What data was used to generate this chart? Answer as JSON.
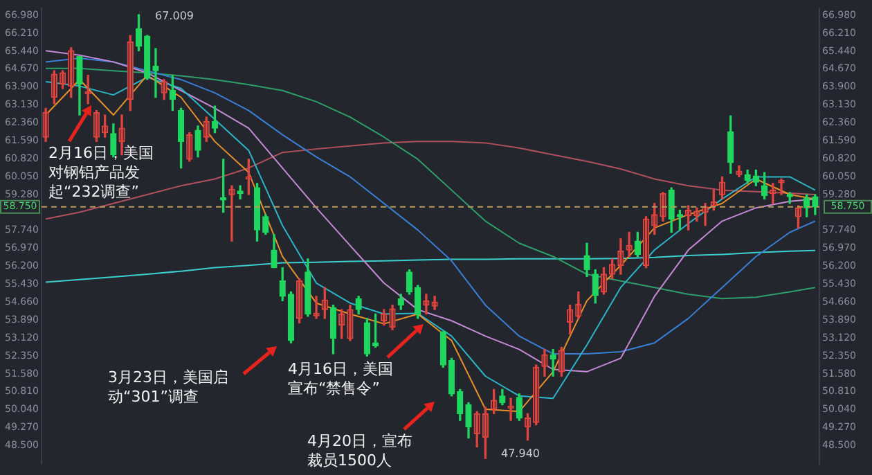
{
  "chart_data": {
    "type": "candlestick",
    "categories": [
      null,
      null,
      null,
      null,
      null,
      null,
      null,
      null,
      null,
      null,
      null,
      null,
      null,
      null,
      null,
      null,
      null,
      null,
      null,
      null,
      null,
      null,
      null,
      null,
      null,
      null,
      null,
      null,
      null,
      null,
      null,
      null,
      null,
      null,
      null,
      null,
      null,
      null,
      null,
      null,
      null,
      null,
      null,
      null,
      null,
      null,
      null,
      null,
      null,
      null,
      null,
      null,
      null,
      null,
      null,
      null,
      null,
      null,
      null,
      null,
      null,
      null,
      null,
      null,
      null,
      null,
      null,
      null,
      null,
      null,
      null,
      null,
      null,
      null,
      null,
      null,
      null,
      null,
      null,
      null,
      null,
      null,
      null,
      null,
      null,
      null,
      null,
      null,
      null,
      null,
      null,
      null
    ],
    "ohlc": [
      [
        61.75,
        62.99,
        61.56,
        62.8
      ],
      [
        63.46,
        64.6,
        63.18,
        64.45
      ],
      [
        64.03,
        64.6,
        63.84,
        64.51
      ],
      [
        63.94,
        65.59,
        63.46,
        65.46
      ],
      [
        65.21,
        65.21,
        62.7,
        64.03
      ],
      [
        63.61,
        64.41,
        63.18,
        63.69
      ],
      [
        61.75,
        62.89,
        61.56,
        62.8
      ],
      [
        61.94,
        62.7,
        61.75,
        62.23
      ],
      [
        61.9,
        62.32,
        60.9,
        60.99
      ],
      [
        61.56,
        62.7,
        60.99,
        62.13
      ],
      [
        63.37,
        66.12,
        62.89,
        65.84
      ],
      [
        66.41,
        67.009,
        65.46,
        65.65
      ],
      [
        66.09,
        66.12,
        64.22,
        64.32
      ],
      [
        64.79,
        65.55,
        63.46,
        64.6
      ],
      [
        63.65,
        64.22,
        63.37,
        64.13
      ],
      [
        63.75,
        64.41,
        62.89,
        63.37
      ],
      [
        62.89,
        62.99,
        60.42,
        61.56
      ],
      [
        60.8,
        61.94,
        60.71,
        61.85
      ],
      [
        62.04,
        62.23,
        60.9,
        61.18
      ],
      [
        61.75,
        62.61,
        61.56,
        62.42
      ],
      [
        62.42,
        63.08,
        61.94,
        62.13
      ],
      [
        59.15,
        60.8,
        58.52,
        59.05
      ],
      [
        59.28,
        59.66,
        57.28,
        59.51
      ],
      [
        59.43,
        59.66,
        59.09,
        59.32
      ],
      [
        59.95,
        60.8,
        59.28,
        60.04
      ],
      [
        59.57,
        59.76,
        57.28,
        57.76
      ],
      [
        58.33,
        58.42,
        57.57,
        57.66
      ],
      [
        56.9,
        57.57,
        56.14,
        56.14
      ],
      [
        55.57,
        56.14,
        54.72,
        54.91
      ],
      [
        55.0,
        55.1,
        52.91,
        53.01
      ],
      [
        53.96,
        55.67,
        53.77,
        55.57
      ],
      [
        55.95,
        56.52,
        54.05,
        54.15
      ],
      [
        54.07,
        54.91,
        53.96,
        54.18
      ],
      [
        54.34,
        55.29,
        53.96,
        54.75
      ],
      [
        54.43,
        54.53,
        52.44,
        53.1
      ],
      [
        53.67,
        54.34,
        53.1,
        54.15
      ],
      [
        53.1,
        54.53,
        53.01,
        54.34
      ],
      [
        54.81,
        54.91,
        54.15,
        54.34
      ],
      [
        53.77,
        53.96,
        52.34,
        52.44
      ],
      [
        52.91,
        54.15,
        52.72,
        52.78
      ],
      [
        53.86,
        54.34,
        53.67,
        54.15
      ],
      [
        53.58,
        54.53,
        53.48,
        54.37
      ],
      [
        54.81,
        55.0,
        54.34,
        54.53
      ],
      [
        55.95,
        56.05,
        55.0,
        55.1
      ],
      [
        55.29,
        55.38,
        53.96,
        54.15
      ],
      [
        54.53,
        55.0,
        54.15,
        54.72
      ],
      [
        54.49,
        54.91,
        54.34,
        54.66
      ],
      [
        53.39,
        53.39,
        51.86,
        51.96
      ],
      [
        52.15,
        52.25,
        50.63,
        50.72
      ],
      [
        50.82,
        50.91,
        49.58,
        49.87
      ],
      [
        50.25,
        50.34,
        48.82,
        49.3
      ],
      [
        49.01,
        49.96,
        48.44,
        49.87
      ],
      [
        48.86,
        50.15,
        47.94,
        49.87
      ],
      [
        50.06,
        50.91,
        49.87,
        50.44
      ],
      [
        50.63,
        50.91,
        50.25,
        50.34
      ],
      [
        50.1,
        50.53,
        49.58,
        50.19
      ],
      [
        50.57,
        50.72,
        49.58,
        49.68
      ],
      [
        49.3,
        49.87,
        48.73,
        49.68
      ],
      [
        49.49,
        51.96,
        49.39,
        51.86
      ],
      [
        51.9,
        52.63,
        51.48,
        52.4
      ],
      [
        52.4,
        52.63,
        51.48,
        52.21
      ],
      [
        51.67,
        52.72,
        51.48,
        52.59
      ],
      [
        53.8,
        54.53,
        53.29,
        54.34
      ],
      [
        54.05,
        55.1,
        53.96,
        54.56
      ],
      [
        56.66,
        57.19,
        55.76,
        56.05
      ],
      [
        55.86,
        56.05,
        54.62,
        54.94
      ],
      [
        55.1,
        56.14,
        55.0,
        55.86
      ],
      [
        55.86,
        56.52,
        55.67,
        56.28
      ],
      [
        56.24,
        57.38,
        55.86,
        56.85
      ],
      [
        56.9,
        57.66,
        56.62,
        57.09
      ],
      [
        57.28,
        57.66,
        56.62,
        56.71
      ],
      [
        56.24,
        58.33,
        56.14,
        58.23
      ],
      [
        57.95,
        58.9,
        57.57,
        58.42
      ],
      [
        58.33,
        59.37,
        58.14,
        59.32
      ],
      [
        59.47,
        59.57,
        57.66,
        58.23
      ],
      [
        58.42,
        58.61,
        57.76,
        58.33
      ],
      [
        58.37,
        58.8,
        57.76,
        58.61
      ],
      [
        58.37,
        58.71,
        58.14,
        58.56
      ],
      [
        58.52,
        58.9,
        57.95,
        58.75
      ],
      [
        58.8,
        59.47,
        58.61,
        58.96
      ],
      [
        59.28,
        60.04,
        59.09,
        59.81
      ],
      [
        61.98,
        62.66,
        60.19,
        60.65
      ],
      [
        60.14,
        60.52,
        60.04,
        60.27
      ],
      [
        60.14,
        60.33,
        59.76,
        59.89
      ],
      [
        60.08,
        60.33,
        59.66,
        59.81
      ],
      [
        59.66,
        60.23,
        59.09,
        59.24
      ],
      [
        59.32,
        59.76,
        58.9,
        59.47
      ],
      [
        59.79,
        59.95,
        59.28,
        59.89
      ],
      [
        59.28,
        59.37,
        58.9,
        59.19
      ],
      [
        58.33,
        58.8,
        57.85,
        58.71
      ],
      [
        59.13,
        59.28,
        58.33,
        58.71
      ],
      [
        59.19,
        59.28,
        58.42,
        58.75
      ]
    ],
    "colors": [
      "#e0443e",
      "#e0443e",
      "#e0443e",
      "#e0443e",
      "#1fd65f",
      "#e0443e",
      "#e0443e",
      "#e0443e",
      "#1fd65f",
      "#e0443e",
      "#e0443e",
      "#1fd65f",
      "#1fd65f",
      "#1fd65f",
      "#e0443e",
      "#1fd65f",
      "#1fd65f",
      "#e0443e",
      "#1fd65f",
      "#e0443e",
      "#1fd65f",
      "#1fd65f",
      "#e0443e",
      "#1fd65f",
      "#e0443e",
      "#1fd65f",
      "#1fd65f",
      "#1fd65f",
      "#1fd65f",
      "#1fd65f",
      "#e0443e",
      "#1fd65f",
      "#e0443e",
      "#e0443e",
      "#1fd65f",
      "#e0443e",
      "#e0443e",
      "#1fd65f",
      "#1fd65f",
      "#1fd65f",
      "#e0443e",
      "#e0443e",
      "#1fd65f",
      "#1fd65f",
      "#1fd65f",
      "#e0443e",
      "#e0443e",
      "#1fd65f",
      "#1fd65f",
      "#1fd65f",
      "#1fd65f",
      "#e0443e",
      "#e0443e",
      "#e0443e",
      "#1fd65f",
      "#e0443e",
      "#1fd65f",
      "#e0443e",
      "#e0443e",
      "#e0443e",
      "#1fd65f",
      "#e0443e",
      "#e0443e",
      "#e0443e",
      "#1fd65f",
      "#1fd65f",
      "#e0443e",
      "#e0443e",
      "#e0443e",
      "#e0443e",
      "#1fd65f",
      "#e0443e",
      "#e0443e",
      "#e0443e",
      "#1fd65f",
      "#1fd65f",
      "#e0443e",
      "#e0443e",
      "#e0443e",
      "#e0443e",
      "#e0443e",
      "#1fd65f",
      "#e0443e",
      "#1fd65f",
      "#1fd65f",
      "#1fd65f",
      "#e0443e",
      "#e0443e",
      "#1fd65f",
      "#e0443e",
      "#1fd65f",
      "#1fd65f"
    ],
    "series": [
      {
        "type": "line",
        "color": "#e8902a",
        "values": [
          62.7,
          null,
          null,
          null,
          64.22,
          null,
          null,
          null,
          62.7,
          null,
          null,
          null,
          64.41,
          null,
          null,
          null,
          63.46,
          null,
          null,
          null,
          61.56,
          null,
          null,
          null,
          60.23,
          null,
          null,
          null,
          56.62,
          null,
          null,
          null,
          54.62,
          null,
          null,
          null,
          54.15,
          null,
          null,
          null,
          53.73,
          null,
          null,
          null,
          54.15,
          null,
          null,
          null,
          53.01,
          null,
          null,
          null,
          50.06,
          null,
          null,
          null,
          49.96,
          null,
          null,
          null,
          51.67,
          null,
          null,
          null,
          54.72,
          null,
          null,
          null,
          56.24,
          null,
          null,
          null,
          57.85,
          null,
          null,
          null,
          58.42,
          null,
          null,
          null,
          58.9,
          null,
          null,
          null,
          59.95,
          null,
          null,
          null,
          59.28,
          null,
          null,
          59.09
        ]
      },
      {
        "type": "line",
        "color": "#2bb5c8",
        "values": [
          64.13,
          null,
          null,
          null,
          63.94,
          null,
          null,
          null,
          63.56,
          null,
          null,
          null,
          64.32,
          null,
          null,
          null,
          63.84,
          null,
          null,
          null,
          62.51,
          null,
          null,
          null,
          61.18,
          null,
          null,
          null,
          57.95,
          null,
          null,
          null,
          55.48,
          null,
          null,
          null,
          54.62,
          null,
          null,
          null,
          54.15,
          null,
          null,
          null,
          54.18,
          null,
          null,
          null,
          53.2,
          null,
          null,
          null,
          51.48,
          null,
          null,
          null,
          50.63,
          null,
          null,
          null,
          50.53,
          null,
          null,
          null,
          52.82,
          null,
          null,
          null,
          55.29,
          null,
          null,
          null,
          56.9,
          null,
          null,
          null,
          58.04,
          null,
          null,
          null,
          59.09,
          null,
          null,
          null,
          60.04,
          null,
          null,
          null,
          60.04,
          null,
          null,
          59.47
        ]
      },
      {
        "type": "line",
        "color": "#c58ad6",
        "values": [
          65.46,
          null,
          null,
          null,
          65.27,
          null,
          null,
          null,
          64.98,
          null,
          null,
          null,
          64.51,
          null,
          null,
          null,
          63.75,
          null,
          null,
          null,
          62.99,
          null,
          null,
          null,
          62.13,
          null,
          null,
          null,
          60.42,
          null,
          null,
          null,
          58.71,
          null,
          null,
          null,
          57.09,
          null,
          null,
          null,
          55.48,
          null,
          null,
          null,
          54.34,
          null,
          null,
          null,
          53.86,
          null,
          null,
          null,
          53.2,
          null,
          null,
          null,
          52.63,
          null,
          null,
          null,
          51.77,
          null,
          null,
          null,
          51.67,
          null,
          null,
          null,
          52.25,
          null,
          null,
          null,
          54.91,
          null,
          null,
          null,
          56.9,
          null,
          null,
          null,
          58.14,
          null,
          null,
          null,
          58.71,
          null,
          null,
          null,
          58.99,
          null,
          null,
          59.09
        ]
      },
      {
        "type": "line",
        "color": "#3a7fd5",
        "values": [
          64.98,
          null,
          null,
          null,
          65.14,
          null,
          null,
          null,
          64.98,
          null,
          null,
          null,
          64.6,
          null,
          null,
          null,
          64.22,
          null,
          null,
          null,
          63.65,
          null,
          null,
          null,
          62.89,
          null,
          null,
          null,
          61.85,
          null,
          null,
          null,
          60.9,
          null,
          null,
          null,
          60.04,
          null,
          null,
          null,
          58.9,
          null,
          null,
          null,
          57.76,
          null,
          null,
          null,
          56.43,
          null,
          null,
          null,
          54.53,
          null,
          null,
          null,
          53.2,
          null,
          null,
          null,
          52.44,
          null,
          null,
          null,
          52.44,
          null,
          null,
          null,
          52.53,
          null,
          null,
          null,
          52.91,
          null,
          null,
          null,
          53.96,
          null,
          null,
          null,
          55.29,
          null,
          null,
          null,
          56.62,
          null,
          null,
          null,
          57.66,
          null,
          null,
          58.14
        ]
      },
      {
        "type": "line",
        "color": "#2e9e6a",
        "values": [
          64.7,
          null,
          null,
          null,
          64.7,
          null,
          null,
          null,
          64.6,
          null,
          null,
          null,
          64.51,
          null,
          null,
          null,
          64.38,
          null,
          null,
          null,
          64.22,
          null,
          null,
          null,
          64.0,
          null,
          null,
          null,
          63.75,
          null,
          null,
          null,
          63.27,
          null,
          null,
          null,
          62.61,
          null,
          null,
          null,
          61.75,
          null,
          null,
          null,
          60.8,
          null,
          null,
          null,
          59.47,
          null,
          null,
          null,
          58.14,
          null,
          null,
          null,
          57.19,
          null,
          null,
          null,
          56.62,
          null,
          null,
          null,
          55.86,
          null,
          null,
          null,
          55.57,
          null,
          null,
          null,
          55.29,
          null,
          null,
          null,
          55.0,
          null,
          null,
          null,
          54.81,
          null,
          null,
          null,
          54.87,
          null,
          null,
          null,
          55.1,
          null,
          null,
          55.29
        ]
      },
      {
        "type": "line",
        "color": "#b0505f",
        "values": [
          58.23,
          null,
          null,
          null,
          58.52,
          null,
          null,
          null,
          58.9,
          null,
          null,
          null,
          59.28,
          null,
          null,
          null,
          59.66,
          null,
          null,
          null,
          59.95,
          null,
          null,
          null,
          60.42,
          null,
          null,
          null,
          61.09,
          null,
          null,
          null,
          61.24,
          null,
          null,
          null,
          61.37,
          null,
          null,
          null,
          61.5,
          null,
          null,
          null,
          61.56,
          null,
          null,
          null,
          61.56,
          null,
          null,
          null,
          61.5,
          null,
          null,
          null,
          61.28,
          null,
          null,
          null,
          60.99,
          null,
          null,
          null,
          60.71,
          null,
          null,
          null,
          60.38,
          null,
          null,
          null,
          59.95,
          null,
          null,
          null,
          59.66,
          null,
          null,
          null,
          59.47,
          null,
          null,
          null,
          59.41,
          null,
          null,
          null,
          59.34,
          null,
          null,
          59.28
        ]
      },
      {
        "type": "line",
        "color": "#3ccfcf",
        "values": [
          55.52,
          null,
          null,
          null,
          55.63,
          null,
          null,
          null,
          55.74,
          null,
          null,
          null,
          55.86,
          null,
          null,
          null,
          55.99,
          null,
          null,
          null,
          56.14,
          null,
          null,
          null,
          56.24,
          null,
          null,
          null,
          56.35,
          null,
          null,
          null,
          56.37,
          null,
          null,
          null,
          56.41,
          null,
          null,
          null,
          56.43,
          null,
          null,
          null,
          56.47,
          null,
          null,
          null,
          56.5,
          null,
          null,
          null,
          56.5,
          null,
          null,
          null,
          56.52,
          null,
          null,
          null,
          56.52,
          null,
          null,
          null,
          56.52,
          null,
          null,
          null,
          56.54,
          null,
          null,
          null,
          56.58,
          null,
          null,
          null,
          56.66,
          null,
          null,
          null,
          56.71,
          null,
          null,
          null,
          56.79,
          null,
          null,
          null,
          56.85,
          null,
          null,
          56.88
        ]
      }
    ],
    "ylim": [
      47.71,
      67.27
    ],
    "yticks": [
      {
        "value": 66.98,
        "label": "66.980"
      },
      {
        "value": 66.21,
        "label": "66.210"
      },
      {
        "value": 65.44,
        "label": "65.440"
      },
      {
        "value": 64.67,
        "label": "64.670"
      },
      {
        "value": 63.9,
        "label": "63.900"
      },
      {
        "value": 63.13,
        "label": "63.130"
      },
      {
        "value": 62.36,
        "label": "62.360"
      },
      {
        "value": 61.59,
        "label": "61.590"
      },
      {
        "value": 60.82,
        "label": "60.820"
      },
      {
        "value": 60.05,
        "label": "60.050"
      },
      {
        "value": 59.28,
        "label": "59.280"
      },
      {
        "value": 57.74,
        "label": "57.740"
      },
      {
        "value": 56.97,
        "label": "56.970"
      },
      {
        "value": 56.2,
        "label": "56.200"
      },
      {
        "value": 55.43,
        "label": "55.430"
      },
      {
        "value": 54.66,
        "label": "54.660"
      },
      {
        "value": 53.89,
        "label": "53.890"
      },
      {
        "value": 53.12,
        "label": "53.120"
      },
      {
        "value": 52.35,
        "label": "52.350"
      },
      {
        "value": 51.58,
        "label": "51.580"
      },
      {
        "value": 50.81,
        "label": "50.810"
      },
      {
        "value": 50.04,
        "label": "50.040"
      },
      {
        "value": 49.27,
        "label": "49.270"
      },
      {
        "value": 48.5,
        "label": "48.500"
      }
    ],
    "y2lim": [
      47.71,
      67.27
    ],
    "y2ticks": [
      {
        "value": 66.98,
        "label": "66.980"
      },
      {
        "value": 66.21,
        "label": "66.210"
      },
      {
        "value": 65.44,
        "label": "65.440"
      },
      {
        "value": 64.67,
        "label": "64.670"
      },
      {
        "value": 63.9,
        "label": "63.900"
      },
      {
        "value": 63.13,
        "label": "63.130"
      },
      {
        "value": 62.36,
        "label": "62.360"
      },
      {
        "value": 61.59,
        "label": "61.590"
      },
      {
        "value": 60.82,
        "label": "60.820"
      },
      {
        "value": 60.05,
        "label": "60.050"
      },
      {
        "value": 59.28,
        "label": "59.280"
      },
      {
        "value": 57.74,
        "label": "57.740"
      },
      {
        "value": 56.97,
        "label": "56.970"
      },
      {
        "value": 56.2,
        "label": "56.200"
      },
      {
        "value": 55.43,
        "label": "55.430"
      },
      {
        "value": 54.66,
        "label": "54.660"
      },
      {
        "value": 53.89,
        "label": "53.890"
      },
      {
        "value": 53.12,
        "label": "53.120"
      },
      {
        "value": 52.35,
        "label": "52.350"
      },
      {
        "value": 51.58,
        "label": "51.580"
      },
      {
        "value": 50.81,
        "label": "50.810"
      },
      {
        "value": 50.04,
        "label": "50.040"
      },
      {
        "value": 49.27,
        "label": "49.270"
      },
      {
        "value": 48.5,
        "label": "48.500"
      }
    ],
    "tick_labels": "y",
    "ref_lines": [
      {
        "axis": "y",
        "value": 58.75,
        "label": "58.750",
        "color": "#b89a5a",
        "line_style": "dashed"
      }
    ],
    "annotations": [
      "2月16日，美国对钢铝产品发起“232调查”",
      "3月23日，美国启动“301”调查",
      "4月16日，美国宣布“禁售令”",
      "4月20日，宣布裁员1500人",
      "67.009",
      "47.940"
    ]
  }
}
